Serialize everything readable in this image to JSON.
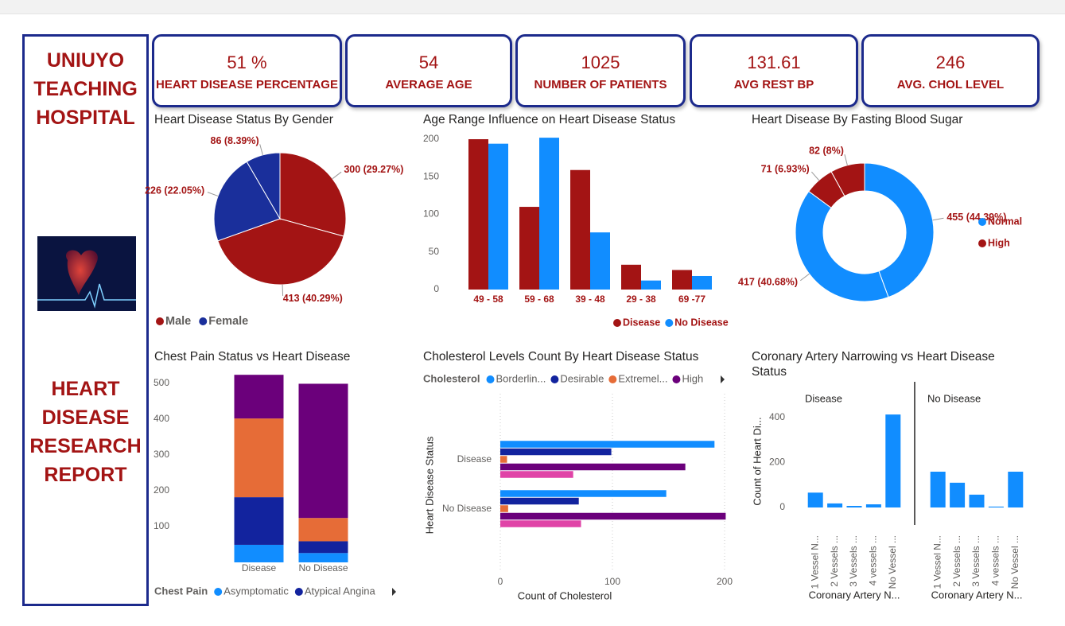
{
  "sidebar": {
    "hospital": "UNIUYO TEACHING HOSPITAL",
    "report": "HEART DISEASE RESEARCH REPORT"
  },
  "kpis": [
    {
      "value": "51 %",
      "label": "HEART DISEASE PERCENTAGE"
    },
    {
      "value": "54",
      "label": "AVERAGE AGE"
    },
    {
      "value": "1025",
      "label": "NUMBER OF PATIENTS"
    },
    {
      "value": "131.61",
      "label": "AVG REST BP"
    },
    {
      "value": "246",
      "label": "AVG. CHOL LEVEL"
    }
  ],
  "chart_data": [
    {
      "type": "pie",
      "title": "Heart Disease Status By Gender",
      "values": [
        300,
        413,
        226,
        86
      ],
      "value_labels": [
        "300 (29.27%)",
        "413 (40.29%)",
        "226 (22.05%)",
        "86 (8.39%)"
      ],
      "colors": [
        "#a31414",
        "#a31414",
        "#1a2f9b",
        "#1a2f9b"
      ],
      "legend": [
        {
          "name": "Male",
          "color": "#a31414"
        },
        {
          "name": "Female",
          "color": "#1a2f9b"
        }
      ],
      "legend_position": "bottom-left"
    },
    {
      "type": "bar",
      "title": "Age Range Influence on Heart Disease Status",
      "categories": [
        "49 - 58",
        "59 - 68",
        "39 - 48",
        "29 - 38",
        "69 -77"
      ],
      "series": [
        {
          "name": "Disease",
          "color": "#a31414",
          "values": [
            200,
            110,
            159,
            33,
            26
          ]
        },
        {
          "name": "No Disease",
          "color": "#118dff",
          "values": [
            194,
            202,
            76,
            12,
            18
          ]
        }
      ],
      "ylim": [
        0,
        205
      ],
      "yticks": [
        0,
        50,
        100,
        150,
        200
      ],
      "legend_position": "bottom-right"
    },
    {
      "type": "donut",
      "title": "Heart Disease By Fasting Blood Sugar",
      "values": [
        455,
        417,
        71,
        82
      ],
      "value_labels": [
        "455 (44.39%)",
        "417 (40.68%)",
        "71 (6.93%)",
        "82 (8%)"
      ],
      "colors": [
        "#118dff",
        "#118dff",
        "#a31414",
        "#a31414"
      ],
      "legend": [
        {
          "name": "Normal",
          "color": "#118dff"
        },
        {
          "name": "High",
          "color": "#a31414"
        }
      ],
      "legend_position": "right"
    },
    {
      "type": "stacked_bar",
      "title": "Chest Pain Status vs Heart Disease",
      "categories": [
        "Disease",
        "No Disease"
      ],
      "series": [
        {
          "name": "Asymptomatic",
          "color": "#118dff",
          "values": [
            49,
            26
          ]
        },
        {
          "name": "Atypical Angina",
          "color": "#12239e",
          "values": [
            133,
            33
          ]
        },
        {
          "color": "#e66c37",
          "values": [
            220,
            65
          ]
        },
        {
          "color": "#6b007b",
          "values": [
            122,
            375
          ]
        }
      ],
      "ylim": [
        0,
        525
      ],
      "yticks": [
        100,
        200,
        300,
        400,
        500
      ],
      "legend_title": "Chest Pain",
      "legend_position": "bottom-left"
    },
    {
      "type": "horizontal_bar",
      "title": "Cholesterol Levels Count By Heart Disease Status",
      "legend_title": "Cholesterol",
      "categories": [
        "Disease",
        "No Disease"
      ],
      "series": [
        {
          "name": "Borderlin...",
          "color": "#118dff",
          "values": [
            191,
            148
          ]
        },
        {
          "name": "Desirable",
          "color": "#12239e",
          "values": [
            99,
            70
          ]
        },
        {
          "name": "Extremel...",
          "color": "#e66c37",
          "values": [
            6,
            7
          ]
        },
        {
          "name": "High",
          "color": "#6b007b",
          "values": [
            165,
            201
          ]
        },
        {
          "color": "#e044a7",
          "values": [
            65,
            72
          ]
        }
      ],
      "xlim": [
        0,
        200
      ],
      "xticks": [
        0,
        100,
        200
      ],
      "x_label": "Count of Cholesterol",
      "y_label": "Heart Disease Status",
      "grid": true,
      "legend_position": "top-left"
    },
    {
      "type": "faceted_bar",
      "title": "Coronary Artery Narrowing vs Heart Disease Status",
      "categories": [
        "1 Vessel N...",
        "2 Vessels ...",
        "3 Vessels ...",
        "4 vessels ...",
        "No Vessel ..."
      ],
      "facets": [
        {
          "name": "Disease",
          "color": "#118dff",
          "values": [
            66,
            18,
            7,
            14,
            413
          ]
        },
        {
          "name": "No Disease",
          "color": "#118dff",
          "values": [
            159,
            110,
            57,
            4,
            159
          ]
        }
      ],
      "ylim": [
        0,
        450
      ],
      "yticks": [
        0,
        200,
        400
      ],
      "x_label": "Coronary Artery N...",
      "y_label": "Count of Heart Di..."
    }
  ]
}
